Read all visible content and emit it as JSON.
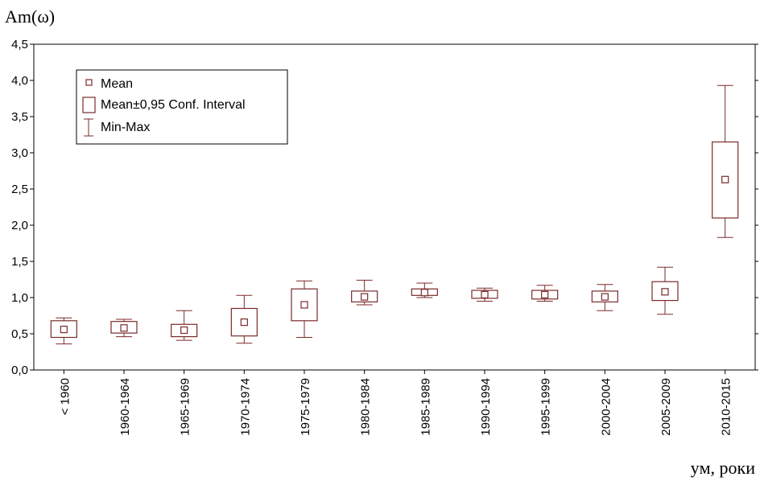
{
  "chart_data": {
    "type": "box",
    "ylabel": "Am(ω)",
    "xlabel": "yм, роки",
    "ylim": [
      0,
      4.5
    ],
    "yticks": [
      "0,0",
      "0,5",
      "1,0",
      "1,5",
      "2,0",
      "2,5",
      "3,0",
      "3,5",
      "4,0",
      "4,5"
    ],
    "grid": false,
    "legend_position": "top-left",
    "colors": {
      "series": "#7b2a2a",
      "axis": "#000000"
    },
    "legend": [
      {
        "label": "Mean",
        "symbol": "small-square"
      },
      {
        "label": "Mean±0,95 Conf. Interval",
        "symbol": "box"
      },
      {
        "label": "Min-Max",
        "symbol": "whisker"
      }
    ],
    "categories": [
      "< 1960",
      "1960-1964",
      "1965-1969",
      "1970-1974",
      "1975-1979",
      "1980-1984",
      "1985-1989",
      "1990-1994",
      "1995-1999",
      "2000-2004",
      "2005-2009",
      "2010-2015"
    ],
    "mean": [
      0.56,
      0.58,
      0.55,
      0.66,
      0.9,
      1.01,
      1.07,
      1.04,
      1.04,
      1.01,
      1.08,
      2.63
    ],
    "ci_low": [
      0.45,
      0.51,
      0.46,
      0.47,
      0.68,
      0.94,
      1.03,
      0.99,
      0.98,
      0.94,
      0.96,
      2.1
    ],
    "ci_high": [
      0.68,
      0.67,
      0.63,
      0.85,
      1.12,
      1.09,
      1.12,
      1.1,
      1.1,
      1.09,
      1.22,
      3.15
    ],
    "min": [
      0.36,
      0.46,
      0.41,
      0.37,
      0.45,
      0.9,
      1.0,
      0.95,
      0.95,
      0.82,
      0.77,
      1.83
    ],
    "max": [
      0.72,
      0.7,
      0.82,
      1.03,
      1.23,
      1.24,
      1.2,
      1.13,
      1.17,
      1.18,
      1.42,
      3.93
    ]
  }
}
